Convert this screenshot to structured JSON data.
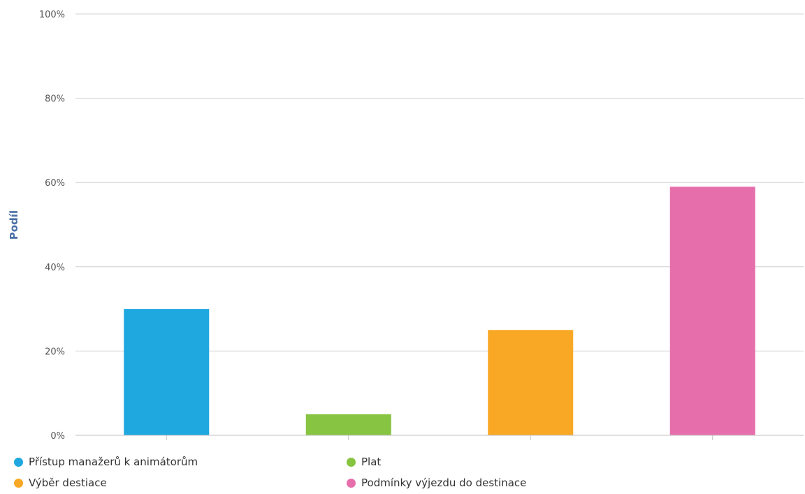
{
  "chart_data": {
    "type": "bar",
    "ylabel": "Podíl",
    "y_unit": "%",
    "ylim": [
      0,
      100
    ],
    "yticks": [
      0,
      20,
      40,
      60,
      80,
      100
    ],
    "grid": true,
    "legend_position": "bottom",
    "series": [
      {
        "name": "Přístup manažerů k animátorům",
        "value": 30,
        "color": "#1fa8e0"
      },
      {
        "name": "Plat",
        "value": 5,
        "color": "#86c441"
      },
      {
        "name": "Výběr destiace",
        "value": 25,
        "color": "#f9a825"
      },
      {
        "name": "Podmínky výjezdu do destinace",
        "value": 59,
        "color": "#e66fab"
      }
    ]
  }
}
